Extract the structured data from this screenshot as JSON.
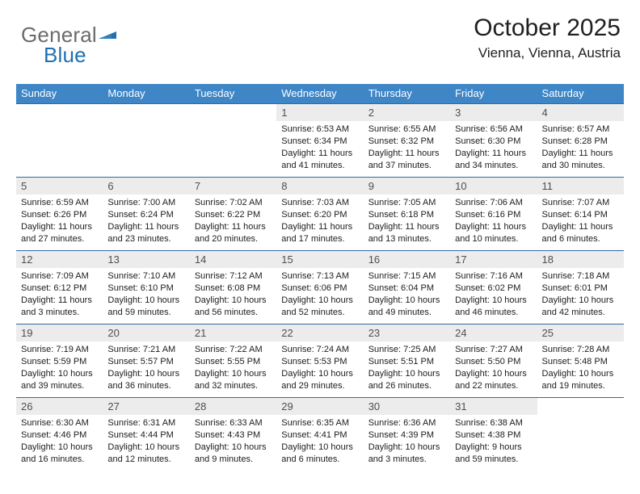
{
  "brand": {
    "word1": "General",
    "word2": "Blue"
  },
  "title": "October 2025",
  "location": "Vienna, Vienna, Austria",
  "colors": {
    "header_bg": "#3f86c6",
    "week_border": "#2f6aa5",
    "daynum_bg": "#ececec",
    "brand_gray": "#6b6b6b",
    "brand_blue": "#1f6fb2"
  },
  "daysOfWeek": [
    "Sunday",
    "Monday",
    "Tuesday",
    "Wednesday",
    "Thursday",
    "Friday",
    "Saturday"
  ],
  "weeks": [
    [
      null,
      null,
      null,
      {
        "n": "1",
        "sr": "6:53 AM",
        "ss": "6:34 PM",
        "dl": "11 hours and 41 minutes."
      },
      {
        "n": "2",
        "sr": "6:55 AM",
        "ss": "6:32 PM",
        "dl": "11 hours and 37 minutes."
      },
      {
        "n": "3",
        "sr": "6:56 AM",
        "ss": "6:30 PM",
        "dl": "11 hours and 34 minutes."
      },
      {
        "n": "4",
        "sr": "6:57 AM",
        "ss": "6:28 PM",
        "dl": "11 hours and 30 minutes."
      }
    ],
    [
      {
        "n": "5",
        "sr": "6:59 AM",
        "ss": "6:26 PM",
        "dl": "11 hours and 27 minutes."
      },
      {
        "n": "6",
        "sr": "7:00 AM",
        "ss": "6:24 PM",
        "dl": "11 hours and 23 minutes."
      },
      {
        "n": "7",
        "sr": "7:02 AM",
        "ss": "6:22 PM",
        "dl": "11 hours and 20 minutes."
      },
      {
        "n": "8",
        "sr": "7:03 AM",
        "ss": "6:20 PM",
        "dl": "11 hours and 17 minutes."
      },
      {
        "n": "9",
        "sr": "7:05 AM",
        "ss": "6:18 PM",
        "dl": "11 hours and 13 minutes."
      },
      {
        "n": "10",
        "sr": "7:06 AM",
        "ss": "6:16 PM",
        "dl": "11 hours and 10 minutes."
      },
      {
        "n": "11",
        "sr": "7:07 AM",
        "ss": "6:14 PM",
        "dl": "11 hours and 6 minutes."
      }
    ],
    [
      {
        "n": "12",
        "sr": "7:09 AM",
        "ss": "6:12 PM",
        "dl": "11 hours and 3 minutes."
      },
      {
        "n": "13",
        "sr": "7:10 AM",
        "ss": "6:10 PM",
        "dl": "10 hours and 59 minutes."
      },
      {
        "n": "14",
        "sr": "7:12 AM",
        "ss": "6:08 PM",
        "dl": "10 hours and 56 minutes."
      },
      {
        "n": "15",
        "sr": "7:13 AM",
        "ss": "6:06 PM",
        "dl": "10 hours and 52 minutes."
      },
      {
        "n": "16",
        "sr": "7:15 AM",
        "ss": "6:04 PM",
        "dl": "10 hours and 49 minutes."
      },
      {
        "n": "17",
        "sr": "7:16 AM",
        "ss": "6:02 PM",
        "dl": "10 hours and 46 minutes."
      },
      {
        "n": "18",
        "sr": "7:18 AM",
        "ss": "6:01 PM",
        "dl": "10 hours and 42 minutes."
      }
    ],
    [
      {
        "n": "19",
        "sr": "7:19 AM",
        "ss": "5:59 PM",
        "dl": "10 hours and 39 minutes."
      },
      {
        "n": "20",
        "sr": "7:21 AM",
        "ss": "5:57 PM",
        "dl": "10 hours and 36 minutes."
      },
      {
        "n": "21",
        "sr": "7:22 AM",
        "ss": "5:55 PM",
        "dl": "10 hours and 32 minutes."
      },
      {
        "n": "22",
        "sr": "7:24 AM",
        "ss": "5:53 PM",
        "dl": "10 hours and 29 minutes."
      },
      {
        "n": "23",
        "sr": "7:25 AM",
        "ss": "5:51 PM",
        "dl": "10 hours and 26 minutes."
      },
      {
        "n": "24",
        "sr": "7:27 AM",
        "ss": "5:50 PM",
        "dl": "10 hours and 22 minutes."
      },
      {
        "n": "25",
        "sr": "7:28 AM",
        "ss": "5:48 PM",
        "dl": "10 hours and 19 minutes."
      }
    ],
    [
      {
        "n": "26",
        "sr": "6:30 AM",
        "ss": "4:46 PM",
        "dl": "10 hours and 16 minutes."
      },
      {
        "n": "27",
        "sr": "6:31 AM",
        "ss": "4:44 PM",
        "dl": "10 hours and 12 minutes."
      },
      {
        "n": "28",
        "sr": "6:33 AM",
        "ss": "4:43 PM",
        "dl": "10 hours and 9 minutes."
      },
      {
        "n": "29",
        "sr": "6:35 AM",
        "ss": "4:41 PM",
        "dl": "10 hours and 6 minutes."
      },
      {
        "n": "30",
        "sr": "6:36 AM",
        "ss": "4:39 PM",
        "dl": "10 hours and 3 minutes."
      },
      {
        "n": "31",
        "sr": "6:38 AM",
        "ss": "4:38 PM",
        "dl": "9 hours and 59 minutes."
      },
      null
    ]
  ],
  "labels": {
    "sunrise": "Sunrise:",
    "sunset": "Sunset:",
    "daylight": "Daylight:"
  }
}
